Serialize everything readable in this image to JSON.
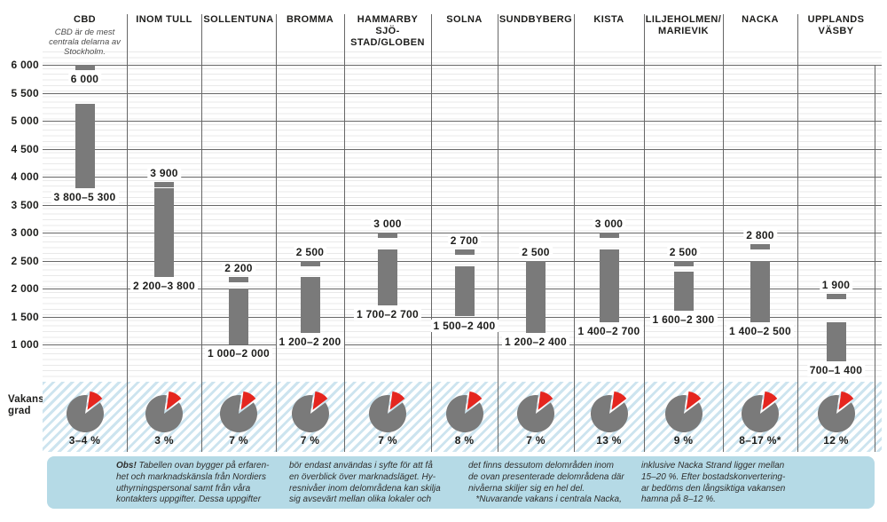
{
  "labels": {
    "vacancy_row": "Vakans-\ngrad"
  },
  "colors": {
    "bar_gray": "#7a7a7a",
    "accent_red": "#e5261f",
    "grid_major": "#676767",
    "grid_minor": "#e9e9e9",
    "band_stripe_blue": "#cde4ef",
    "footer_bg": "#b5dae6",
    "text_dark": "#1d1d1b"
  },
  "chart_data": {
    "type": "bar",
    "subtype": "range-bars-with-max-marker-and-vacancy-pies",
    "ylim": [
      700,
      6000
    ],
    "grid": true,
    "y_ticks": [
      "6 000",
      "5 500",
      "5 000",
      "4 500",
      "4 000",
      "3 500",
      "3 000",
      "2 500",
      "2 000",
      "1 500",
      "1 000"
    ],
    "columns": [
      {
        "name": "CBD",
        "subtitle": "CBD är de mest centrala delarna av Stockholm.",
        "range_low": 3800,
        "range_high": 5300,
        "range_label": "3 800–5 300",
        "max": 6000,
        "max_label": "6 000",
        "max_label_position": "below",
        "vacancy_pct": "3–4 %"
      },
      {
        "name": "INOM TULL",
        "range_low": 2200,
        "range_high": 3800,
        "range_label": "2 200–3 800",
        "max": 3900,
        "max_label": "3 900",
        "vacancy_pct": "3 %"
      },
      {
        "name": "SOLLENTUNA",
        "range_low": 1000,
        "range_high": 2000,
        "range_label": "1 000–2 000",
        "max": 2200,
        "max_label": "2 200",
        "vacancy_pct": "7 %"
      },
      {
        "name": "BROMMA",
        "range_low": 1200,
        "range_high": 2200,
        "range_label": "1 200–2 200",
        "max": 2500,
        "max_label": "2 500",
        "vacancy_pct": "7 %"
      },
      {
        "name": "HAMMARBY SJÖ-\nSTAD/GLOBEN",
        "range_low": 1700,
        "range_high": 2700,
        "range_label": "1 700–2 700",
        "max": 3000,
        "max_label": "3 000",
        "vacancy_pct": "7 %"
      },
      {
        "name": "SOLNA",
        "range_low": 1500,
        "range_high": 2400,
        "range_label": "1 500–2 400",
        "max": 2700,
        "max_label": "2 700",
        "vacancy_pct": "8 %"
      },
      {
        "name": "SUNDBYBERG",
        "range_low": 1200,
        "range_high": 2400,
        "range_label": "1 200–2 400",
        "max": 2500,
        "max_label": "2 500",
        "vacancy_pct": "7 %"
      },
      {
        "name": "KISTA",
        "range_low": 1400,
        "range_high": 2700,
        "range_label": "1 400–2 700",
        "max": 3000,
        "max_label": "3 000",
        "vacancy_pct": "13 %"
      },
      {
        "name": "LILJEHOLMEN/\nMARIEVIK",
        "range_low": 1600,
        "range_high": 2300,
        "range_label": "1 600–2 300",
        "max": 2500,
        "max_label": "2 500",
        "vacancy_pct": "9 %"
      },
      {
        "name": "NACKA",
        "range_low": 1400,
        "range_high": 2500,
        "range_label": "1 400–2 500",
        "max": 2800,
        "max_label": "2 800",
        "vacancy_pct": "8–17 %*"
      },
      {
        "name": "UPPLANDS\nVÄSBY",
        "range_low": 700,
        "range_high": 1400,
        "range_label": "700–1 400",
        "max": 1900,
        "max_label": "1 900",
        "vacancy_pct": "12 %"
      }
    ]
  },
  "footer": {
    "obs": "Obs!",
    "col1": " Tabellen ovan bygger på erfaren-\nhet och marknadskänsla från Nordiers\nuthyrningspersonal samt från våra\nkontakters uppgifter. Dessa uppgifter",
    "col2": "bör endast användas i syfte för att få\nen överblick över marknadsläget. Hy-\nresnivåer inom delområdena kan skilja\nsig avsevärt mellan olika lokaler och",
    "col3": "det finns dessutom delområden inom\nde ovan presenterade delområdena där\nnivåerna skiljer sig en hel del.\n   *Nuvarande vakans i centrala Nacka,",
    "col4": "inklusive Nacka Strand ligger mellan\n15–20 %. Efter bostadskonvertering-\nar bedöms den långsiktiga vakansen\nhamna på 8–12 %."
  }
}
